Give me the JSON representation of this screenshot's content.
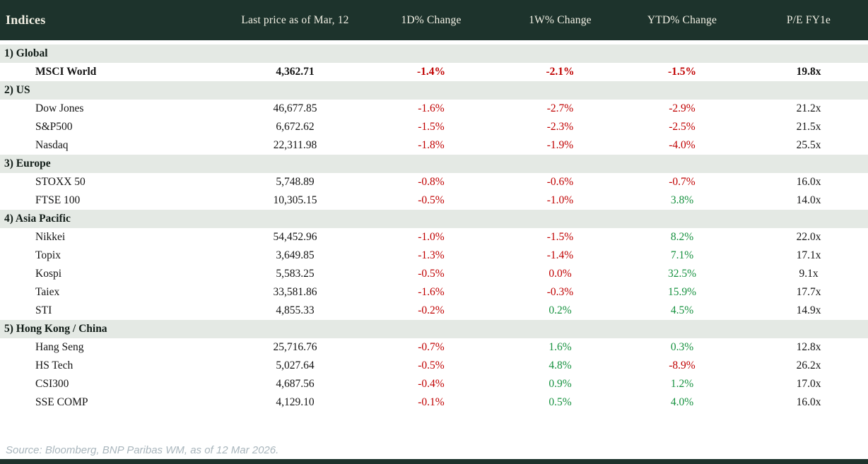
{
  "header": {
    "title": "Indices",
    "columns": [
      "Last price as of Mar, 12",
      "1D% Change",
      "1W% Change",
      "YTD% Change",
      "P/E FY1e"
    ]
  },
  "sections": [
    {
      "label": "1) Global",
      "rows": [
        {
          "name": "MSCI World",
          "bold": true,
          "price": "4,362.71",
          "changes": [
            "-1.4%",
            "-2.1%",
            "-1.5%"
          ],
          "change_colors": [
            "neg",
            "neg",
            "neg"
          ],
          "pe": "19.8x"
        }
      ]
    },
    {
      "label": "2) US",
      "rows": [
        {
          "name": "Dow Jones",
          "price": "46,677.85",
          "changes": [
            "-1.6%",
            "-2.7%",
            "-2.9%"
          ],
          "change_colors": [
            "neg",
            "neg",
            "neg"
          ],
          "pe": "21.2x"
        },
        {
          "name": "S&P500",
          "price": "6,672.62",
          "changes": [
            "-1.5%",
            "-2.3%",
            "-2.5%"
          ],
          "change_colors": [
            "neg",
            "neg",
            "neg"
          ],
          "pe": "21.5x"
        },
        {
          "name": "Nasdaq",
          "price": "22,311.98",
          "changes": [
            "-1.8%",
            "-1.9%",
            "-4.0%"
          ],
          "change_colors": [
            "neg",
            "neg",
            "neg"
          ],
          "pe": "25.5x"
        }
      ]
    },
    {
      "label": "3) Europe",
      "rows": [
        {
          "name": "STOXX 50",
          "price": "5,748.89",
          "changes": [
            "-0.8%",
            "-0.6%",
            "-0.7%"
          ],
          "change_colors": [
            "neg",
            "neg",
            "neg"
          ],
          "pe": "16.0x"
        },
        {
          "name": "FTSE 100",
          "price": "10,305.15",
          "changes": [
            "-0.5%",
            "-1.0%",
            "3.8%"
          ],
          "change_colors": [
            "neg",
            "neg",
            "pos"
          ],
          "pe": "14.0x"
        }
      ]
    },
    {
      "label": "4) Asia Pacific",
      "rows": [
        {
          "name": "Nikkei",
          "price": "54,452.96",
          "changes": [
            "-1.0%",
            "-1.5%",
            "8.2%"
          ],
          "change_colors": [
            "neg",
            "neg",
            "pos"
          ],
          "pe": "22.0x"
        },
        {
          "name": "Topix",
          "price": "3,649.85",
          "changes": [
            "-1.3%",
            "-1.4%",
            "7.1%"
          ],
          "change_colors": [
            "neg",
            "neg",
            "pos"
          ],
          "pe": "17.1x"
        },
        {
          "name": "Kospi",
          "price": "5,583.25",
          "changes": [
            "-0.5%",
            "0.0%",
            "32.5%"
          ],
          "change_colors": [
            "neg",
            "neg",
            "pos"
          ],
          "pe": "9.1x"
        },
        {
          "name": "Taiex",
          "price": "33,581.86",
          "changes": [
            "-1.6%",
            "-0.3%",
            "15.9%"
          ],
          "change_colors": [
            "neg",
            "neg",
            "pos"
          ],
          "pe": "17.7x"
        },
        {
          "name": "STI",
          "price": "4,855.33",
          "changes": [
            "-0.2%",
            "0.2%",
            "4.5%"
          ],
          "change_colors": [
            "neg",
            "pos",
            "pos"
          ],
          "pe": "14.9x"
        }
      ]
    },
    {
      "label": "5) Hong Kong / China",
      "rows": [
        {
          "name": "Hang Seng",
          "price": "25,716.76",
          "changes": [
            "-0.7%",
            "1.6%",
            "0.3%"
          ],
          "change_colors": [
            "neg",
            "pos",
            "pos"
          ],
          "pe": "12.8x"
        },
        {
          "name": "HS Tech",
          "price": "5,027.64",
          "changes": [
            "-0.5%",
            "4.8%",
            "-8.9%"
          ],
          "change_colors": [
            "neg",
            "pos",
            "neg"
          ],
          "pe": "26.2x"
        },
        {
          "name": "CSI300",
          "price": "4,687.56",
          "changes": [
            "-0.4%",
            "0.9%",
            "1.2%"
          ],
          "change_colors": [
            "neg",
            "pos",
            "pos"
          ],
          "pe": "17.0x"
        },
        {
          "name": "SSE COMP",
          "price": "4,129.10",
          "changes": [
            "-0.1%",
            "0.5%",
            "4.0%"
          ],
          "change_colors": [
            "neg",
            "pos",
            "pos"
          ],
          "pe": "16.0x"
        }
      ]
    }
  ],
  "footer": {
    "source": "Source: Bloomberg, BNP Paribas WM, as of 12 Mar 2026."
  },
  "colors": {
    "header_bg": "#1d332c",
    "header_fg": "#f3f1e5",
    "section_bg": "#e4e9e4",
    "negative": "#c00000",
    "positive": "#16913f",
    "source_fg": "#a9b6bd"
  }
}
